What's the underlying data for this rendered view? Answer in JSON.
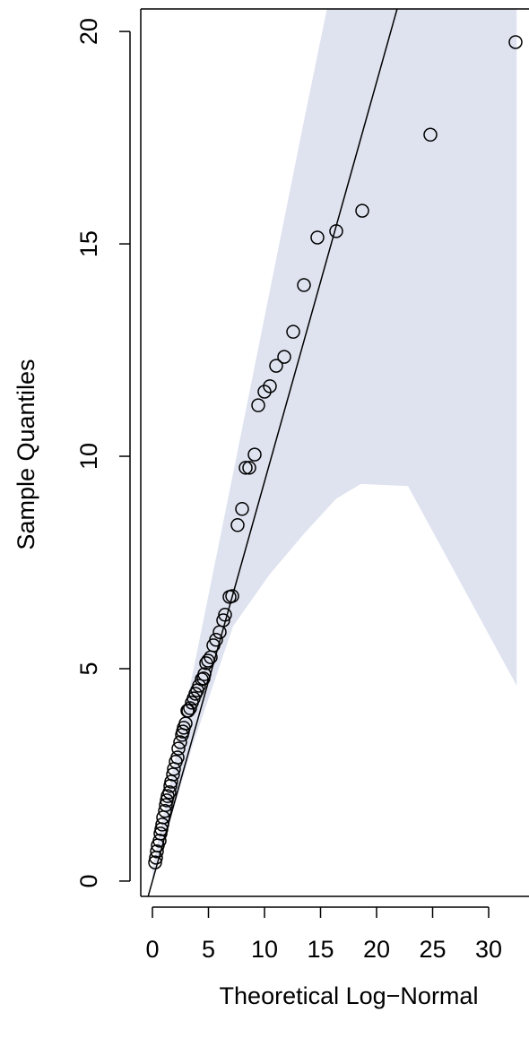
{
  "chart_data": {
    "type": "qq",
    "xlabel": "Theoretical Log−Normal",
    "ylabel": "Sample Quantiles",
    "xlim": [
      -1.04,
      33.6
    ],
    "ylim": [
      -0.36,
      20.53
    ],
    "xticks": [
      0,
      5,
      10,
      15,
      20,
      25,
      30
    ],
    "yticks": [
      0,
      5,
      10,
      15,
      20
    ],
    "points": {
      "color": "#000000",
      "x": [
        0.24,
        0.32,
        0.4,
        0.48,
        0.64,
        0.72,
        0.8,
        0.88,
        0.96,
        1.12,
        1.2,
        1.28,
        1.36,
        1.52,
        1.6,
        1.68,
        1.84,
        1.92,
        2.08,
        2.24,
        2.32,
        2.48,
        2.64,
        2.72,
        2.8,
        2.96,
        3.12,
        3.2,
        3.36,
        3.52,
        3.68,
        3.84,
        4.0,
        4.16,
        4.4,
        4.56,
        4.64,
        4.8,
        4.96,
        5.2,
        5.44,
        5.68,
        6.0,
        6.32,
        6.48,
        6.88,
        7.12,
        7.6,
        8.0,
        8.32,
        8.64,
        9.12,
        9.44,
        10.0,
        10.48,
        11.04,
        11.76,
        12.56,
        13.52,
        14.72,
        16.4,
        18.72,
        24.8,
        32.4
      ],
      "y": [
        0.44,
        0.55,
        0.7,
        0.84,
        0.95,
        1.12,
        1.22,
        1.33,
        1.5,
        1.65,
        1.79,
        1.9,
        2.0,
        2.09,
        2.24,
        2.34,
        2.51,
        2.64,
        2.81,
        2.91,
        3.12,
        3.27,
        3.44,
        3.52,
        3.61,
        3.71,
        4.01,
        4.01,
        4.07,
        4.2,
        4.3,
        4.41,
        4.49,
        4.6,
        4.75,
        4.77,
        4.87,
        5.13,
        5.19,
        5.27,
        5.55,
        5.68,
        5.86,
        6.14,
        6.27,
        6.69,
        6.71,
        8.38,
        8.76,
        9.73,
        9.73,
        10.04,
        11.2,
        11.52,
        11.65,
        12.13,
        12.34,
        12.93,
        14.03,
        15.15,
        15.3,
        15.78,
        17.57,
        19.75
      ]
    },
    "reference_line": {
      "color": "#000000",
      "x": [
        0,
        21.8
      ],
      "y": [
        0,
        20.5
      ]
    },
    "band": {
      "color": "#dfe3f0",
      "x": [
        0,
        3.6,
        7.2,
        10.4,
        13.6,
        16.4,
        18.6,
        22.8,
        32.5
      ],
      "upper": [
        0.3,
        4.9,
        9.6,
        13.8,
        18.0,
        21.6,
        24.5,
        30.0,
        42.0
      ],
      "lower": [
        0,
        3.2,
        6.0,
        7.2,
        8.2,
        9.0,
        9.35,
        9.3,
        4.6
      ]
    }
  }
}
